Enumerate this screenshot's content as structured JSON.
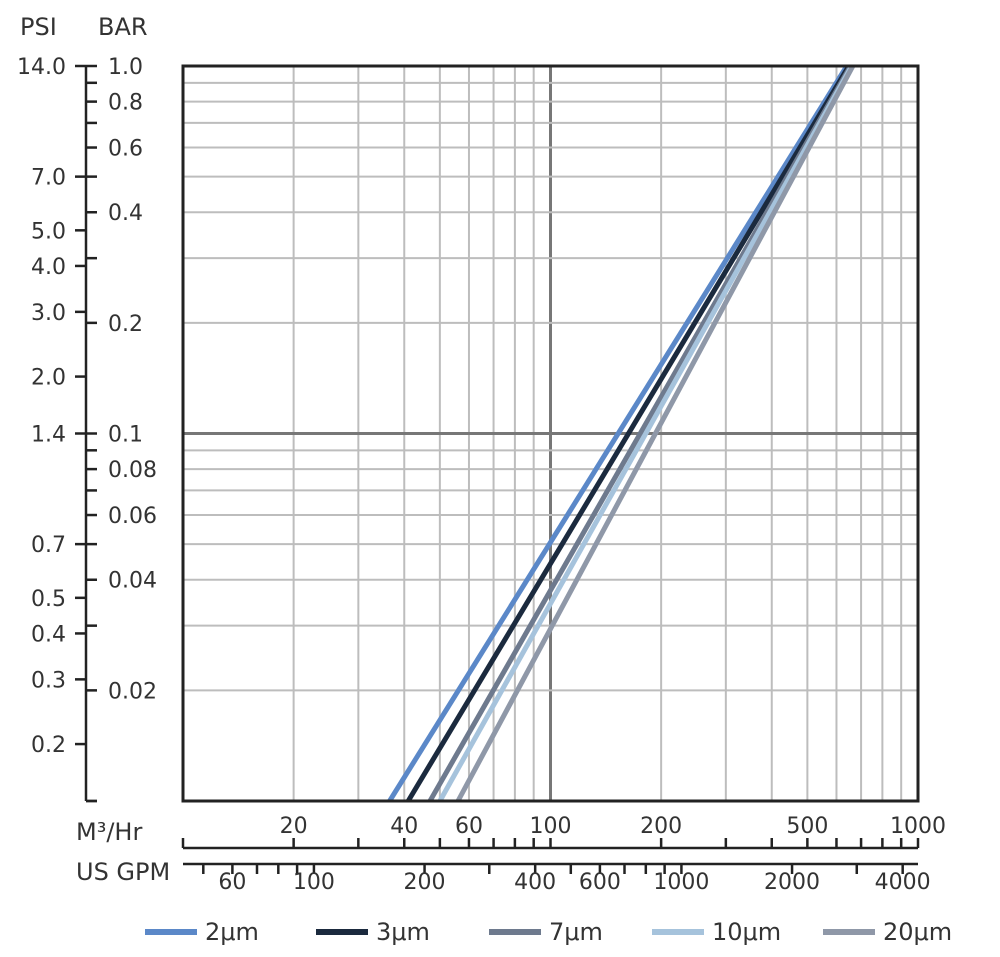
{
  "chart_data": {
    "type": "line",
    "x_scale": "log",
    "y_scale": "log",
    "xlim": [
      10,
      1000
    ],
    "ylim": [
      0.01,
      1.0
    ],
    "x_label_primary": "M³/Hr",
    "x_label_secondary": "US GPM",
    "y_label_bar": "BAR",
    "y_label_psi": "PSI",
    "x_ticks_m3hr": [
      {
        "value": 20,
        "label": "20"
      },
      {
        "value": 40,
        "label": "40"
      },
      {
        "value": 60,
        "label": "60"
      },
      {
        "value": 100,
        "label": "100"
      },
      {
        "value": 200,
        "label": "200"
      },
      {
        "value": 500,
        "label": "500"
      },
      {
        "value": 1000,
        "label": "1000"
      }
    ],
    "x_ticks_gpm": [
      {
        "value": 60,
        "label": "60"
      },
      {
        "value": 100,
        "label": "100"
      },
      {
        "value": 200,
        "label": "200"
      },
      {
        "value": 400,
        "label": "400"
      },
      {
        "value": 600,
        "label": "600"
      },
      {
        "value": 1000,
        "label": "1000"
      },
      {
        "value": 2000,
        "label": "2000"
      },
      {
        "value": 4000,
        "label": "4000"
      }
    ],
    "y_ticks_bar": [
      {
        "value": 1.0,
        "label": "1.0"
      },
      {
        "value": 0.8,
        "label": "0.8"
      },
      {
        "value": 0.6,
        "label": "0.6"
      },
      {
        "value": 0.4,
        "label": "0.4"
      },
      {
        "value": 0.2,
        "label": "0.2"
      },
      {
        "value": 0.1,
        "label": "0.1"
      },
      {
        "value": 0.08,
        "label": "0.08"
      },
      {
        "value": 0.06,
        "label": "0.06"
      },
      {
        "value": 0.04,
        "label": "0.04"
      },
      {
        "value": 0.02,
        "label": "0.02"
      }
    ],
    "y_ticks_psi": [
      {
        "value": 14.0,
        "label": "14.0"
      },
      {
        "value": 7.0,
        "label": "7.0"
      },
      {
        "value": 5.0,
        "label": "5.0"
      },
      {
        "value": 4.0,
        "label": "4.0"
      },
      {
        "value": 3.0,
        "label": "3.0"
      },
      {
        "value": 2.0,
        "label": "2.0"
      },
      {
        "value": 1.4,
        "label": "1.4"
      },
      {
        "value": 0.7,
        "label": "0.7"
      },
      {
        "value": 0.5,
        "label": "0.5"
      },
      {
        "value": 0.4,
        "label": "0.4"
      },
      {
        "value": 0.3,
        "label": "0.3"
      },
      {
        "value": 0.2,
        "label": "0.2"
      }
    ],
    "series": [
      {
        "name": "2μm",
        "color": "#5b88c8",
        "x": [
          36.5,
          640
        ],
        "y": [
          0.01,
          1.0
        ]
      },
      {
        "name": "3μm",
        "color": "#1b2a3e",
        "x": [
          41,
          648
        ],
        "y": [
          0.01,
          1.0
        ]
      },
      {
        "name": "7μm",
        "color": "#6e7a8e",
        "x": [
          47,
          655
        ],
        "y": [
          0.01,
          1.0
        ]
      },
      {
        "name": "10μm",
        "color": "#a6c3dc",
        "x": [
          50,
          660
        ],
        "y": [
          0.01,
          1.0
        ]
      },
      {
        "name": "20μm",
        "color": "#8f98a8",
        "x": [
          56,
          665
        ],
        "y": [
          0.01,
          1.0
        ]
      }
    ],
    "grid": true,
    "legend_position": "bottom"
  }
}
